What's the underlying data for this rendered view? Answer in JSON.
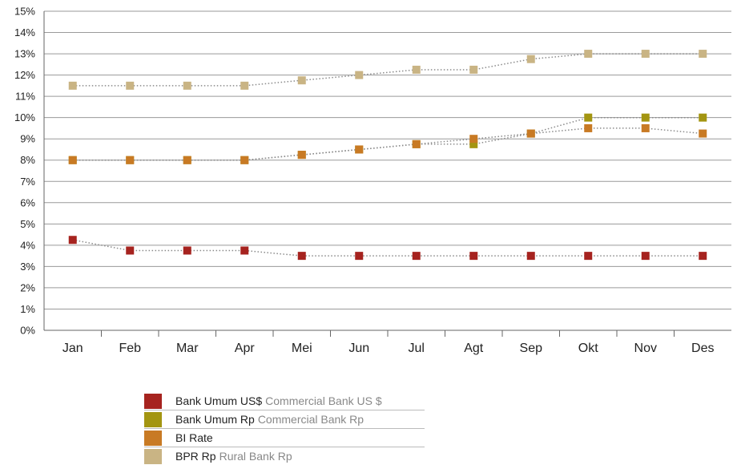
{
  "chart_data": {
    "type": "line",
    "categories": [
      "Jan",
      "Feb",
      "Mar",
      "Apr",
      "Mei",
      "Jun",
      "Jul",
      "Agt",
      "Sep",
      "Okt",
      "Nov",
      "Des"
    ],
    "y_ticks": [
      "0%",
      "1%",
      "2%",
      "3%",
      "4%",
      "5%",
      "6%",
      "7%",
      "8%",
      "9%",
      "10%",
      "11%",
      "12%",
      "13%",
      "14%",
      "15%"
    ],
    "ylim": [
      0,
      15
    ],
    "grid": true,
    "legend_position": "bottom",
    "series": [
      {
        "name": "Bank Umum US$",
        "name_en": "Commercial Bank US $",
        "color": "#a6231f",
        "values": [
          4.25,
          3.75,
          3.75,
          3.75,
          3.5,
          3.5,
          3.5,
          3.5,
          3.5,
          3.5,
          3.5,
          3.5
        ]
      },
      {
        "name": "Bank Umum Rp",
        "name_en": "Commercial Bank Rp",
        "color": "#a39511",
        "values": [
          8.0,
          8.0,
          8.0,
          8.0,
          8.25,
          8.5,
          8.75,
          8.75,
          9.25,
          10.0,
          10.0,
          10.0
        ]
      },
      {
        "name": "BI Rate",
        "name_en": "",
        "color": "#c87a24",
        "values": [
          8.0,
          8.0,
          8.0,
          8.0,
          8.25,
          8.5,
          8.75,
          9.0,
          9.25,
          9.5,
          9.5,
          9.25
        ]
      },
      {
        "name": "BPR Rp",
        "name_en": "Rural Bank Rp",
        "color": "#c9b484",
        "values": [
          11.5,
          11.5,
          11.5,
          11.5,
          11.75,
          12.0,
          12.25,
          12.25,
          12.75,
          13.0,
          13.0,
          13.0
        ]
      }
    ]
  }
}
